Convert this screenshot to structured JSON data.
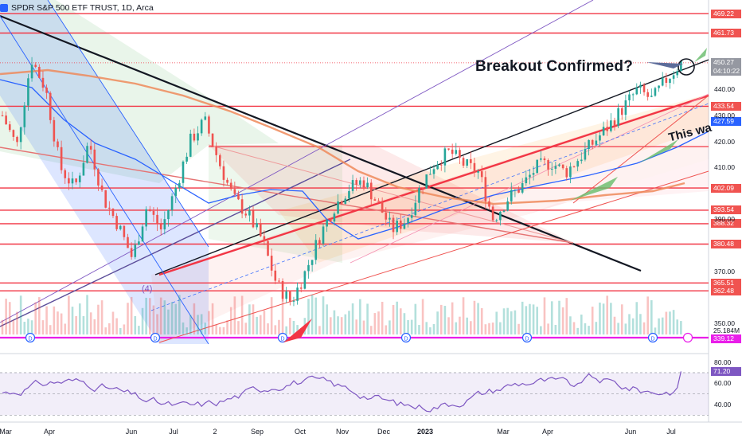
{
  "window": {
    "symbol_title": "SPDR S&P 500 ETF TRUST, 1D, Arca"
  },
  "annotations": {
    "breakout": "Breakout Confirmed?",
    "rotated_text": "This wa",
    "wave_label": "(4)"
  },
  "price_labels": [
    {
      "value": "469.22",
      "color": "#f05350"
    },
    {
      "value": "461.73",
      "color": "#f05350"
    },
    {
      "value": "450.27",
      "color": "#9598a1"
    },
    {
      "value": "04:10:22",
      "color": "#9598a1"
    },
    {
      "value": "433.54",
      "color": "#f05350"
    },
    {
      "value": "427.59",
      "color": "#2962ff"
    },
    {
      "value": "402.09",
      "color": "#f05350"
    },
    {
      "value": "393.54",
      "color": "#f05350"
    },
    {
      "value": "388.32",
      "color": "#f05350"
    },
    {
      "value": "380.48",
      "color": "#f05350"
    },
    {
      "value": "365.51",
      "color": "#f05350"
    },
    {
      "value": "362.48",
      "color": "#f05350"
    },
    {
      "value": "25.184M",
      "color": "#555a66"
    },
    {
      "value": "339.12",
      "color": "#e91ee9"
    },
    {
      "value": "71.20",
      "color": "#7e57c2"
    }
  ],
  "price_ticks": [
    "440.00",
    "430.00",
    "420.00",
    "410.00",
    "390.00",
    "370.00",
    "350.00"
  ],
  "rsi_ticks": [
    "80.00",
    "60.00",
    "40.00"
  ],
  "x_ticks": [
    "Mar",
    "Apr",
    "Jun",
    "Jul",
    "2",
    "Sep",
    "Oct",
    "Nov",
    "Dec",
    "2023",
    "Mar",
    "Apr",
    "Jun",
    "Jul"
  ],
  "colors": {
    "ma_blue": "#2962ff",
    "ma_orange": "#ef8a5a",
    "candle_up": "#26a69a",
    "candle_down": "#ef5350",
    "rsi_line": "#7e57c2",
    "support_line": "#f23645",
    "magenta": "#e91ee9"
  },
  "chart_data": {
    "type": "candlestick",
    "title": "SPDR S&P 500 ETF TRUST, 1D, Arca",
    "ylim": [
      342,
      472
    ],
    "x": [
      "Mar",
      "Apr",
      "Jun",
      "Jul",
      "Sep",
      "Oct",
      "Nov",
      "Dec",
      "2023",
      "Mar",
      "Apr",
      "Jun",
      "Jul"
    ],
    "close_path": [
      430,
      418,
      452,
      440,
      410,
      402,
      420,
      398,
      388,
      375,
      395,
      386,
      402,
      420,
      428,
      412,
      398,
      392,
      382,
      365,
      358,
      370,
      384,
      395,
      402,
      405,
      396,
      386,
      390,
      403,
      412,
      416,
      411,
      408,
      390,
      398,
      403,
      410,
      412,
      408,
      414,
      420,
      426,
      433,
      440,
      436,
      444,
      450.27
    ],
    "horizontal_levels": [
      469.22,
      461.73,
      450.27,
      433.54,
      402.09,
      393.54,
      388.32,
      380.48,
      365.51,
      362.48
    ],
    "moving_average": 427.59,
    "volume_last": "25.184M",
    "rsi": {
      "last": 71.2,
      "ylim": [
        25,
        85
      ],
      "levels": [
        70,
        50,
        30
      ]
    }
  }
}
